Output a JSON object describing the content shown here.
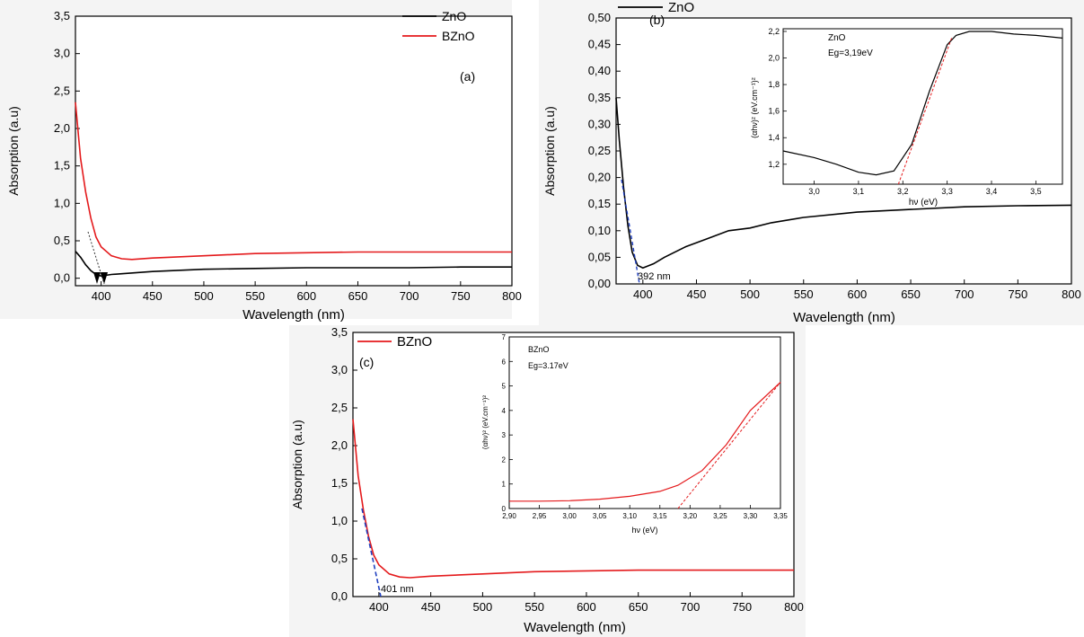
{
  "colors": {
    "zno": "#000000",
    "bzno": "#e41a1c",
    "fit": "#1f3fbf",
    "panel_bg": "#ffffff"
  },
  "chart_data": [
    {
      "id": "a",
      "type": "line",
      "panel_label": "(a)",
      "xlabel": "Wavelength (nm)",
      "ylabel": "Absorption (a.u)",
      "xlim": [
        375,
        800
      ],
      "ylim": [
        -0.1,
        3.5
      ],
      "xticks": [
        400,
        450,
        500,
        550,
        600,
        650,
        700,
        750,
        800
      ],
      "yticks": [
        0.0,
        0.5,
        1.0,
        1.5,
        2.0,
        2.5,
        3.0,
        3.5
      ],
      "ytick_labels": [
        "0,0",
        "0,5",
        "1,0",
        "1,5",
        "2,0",
        "2,5",
        "3,0",
        "3,5"
      ],
      "legend": [
        "ZnO",
        "BZnO"
      ],
      "series": [
        {
          "name": "ZnO",
          "color": "#000000",
          "x": [
            375,
            380,
            385,
            390,
            395,
            400,
            410,
            420,
            450,
            500,
            550,
            600,
            650,
            700,
            750,
            800
          ],
          "y": [
            0.36,
            0.28,
            0.18,
            0.1,
            0.05,
            0.03,
            0.05,
            0.06,
            0.09,
            0.12,
            0.13,
            0.14,
            0.14,
            0.14,
            0.15,
            0.15
          ]
        },
        {
          "name": "BZnO",
          "color": "#e41a1c",
          "x": [
            375,
            378,
            380,
            385,
            390,
            395,
            400,
            410,
            420,
            430,
            450,
            500,
            550,
            600,
            650,
            700,
            750,
            800
          ],
          "y": [
            2.35,
            1.9,
            1.6,
            1.15,
            0.8,
            0.55,
            0.42,
            0.3,
            0.26,
            0.25,
            0.27,
            0.3,
            0.33,
            0.34,
            0.35,
            0.35,
            0.35,
            0.35
          ]
        }
      ]
    },
    {
      "id": "b",
      "type": "line",
      "panel_label": "(b)",
      "xlabel": "Wavelength (nm)",
      "ylabel": "Absorption (a.u)",
      "xlim": [
        375,
        800
      ],
      "ylim": [
        0.0,
        0.5
      ],
      "xticks": [
        400,
        450,
        500,
        550,
        600,
        650,
        700,
        750,
        800
      ],
      "yticks": [
        0.0,
        0.05,
        0.1,
        0.15,
        0.2,
        0.25,
        0.3,
        0.35,
        0.4,
        0.45,
        0.5
      ],
      "ytick_labels": [
        "0,00",
        "0,05",
        "0,10",
        "0,15",
        "0,20",
        "0,25",
        "0,30",
        "0,35",
        "0,40",
        "0,45",
        "0,50"
      ],
      "legend": [
        "ZnO"
      ],
      "annotation": "392 nm",
      "series": [
        {
          "name": "ZnO",
          "color": "#000000",
          "x": [
            375,
            378,
            382,
            386,
            390,
            395,
            400,
            410,
            420,
            440,
            460,
            480,
            500,
            520,
            550,
            600,
            650,
            700,
            750,
            800
          ],
          "y": [
            0.35,
            0.27,
            0.18,
            0.11,
            0.06,
            0.035,
            0.03,
            0.038,
            0.05,
            0.07,
            0.085,
            0.1,
            0.105,
            0.115,
            0.125,
            0.135,
            0.14,
            0.145,
            0.147,
            0.148
          ]
        }
      ],
      "inset": {
        "label": "ZnO",
        "eg": "Eg=3,19eV",
        "xlabel": "hν (eV)",
        "ylabel": "(αhν)² (eV.cm⁻¹)²",
        "xlim": [
          2.93,
          3.56
        ],
        "ylim": [
          1.05,
          2.22
        ],
        "xticks": [
          3.0,
          3.1,
          3.2,
          3.3,
          3.4,
          3.5
        ],
        "xtick_labels": [
          "3,0",
          "3,1",
          "3,2",
          "3,3",
          "3,4",
          "3,5"
        ],
        "yticks": [
          1.2,
          1.4,
          1.6,
          1.8,
          2.0,
          2.2
        ],
        "ytick_labels": [
          "1,2",
          "1,4",
          "1,6",
          "1,8",
          "2,0",
          "2,2"
        ],
        "x": [
          2.93,
          3.0,
          3.05,
          3.1,
          3.14,
          3.18,
          3.22,
          3.26,
          3.3,
          3.32,
          3.35,
          3.4,
          3.45,
          3.5,
          3.56
        ],
        "y": [
          1.3,
          1.25,
          1.2,
          1.14,
          1.12,
          1.15,
          1.35,
          1.75,
          2.1,
          2.17,
          2.2,
          2.2,
          2.18,
          2.17,
          2.15
        ],
        "fit_x": [
          3.19,
          3.31
        ],
        "fit_y": [
          1.05,
          2.15
        ]
      }
    },
    {
      "id": "c",
      "type": "line",
      "panel_label": "(c)",
      "xlabel": "Wavelength (nm)",
      "ylabel": "Absorption (a.u)",
      "xlim": [
        375,
        800
      ],
      "ylim": [
        0.0,
        3.5
      ],
      "xticks": [
        400,
        450,
        500,
        550,
        600,
        650,
        700,
        750,
        800
      ],
      "yticks": [
        0.0,
        0.5,
        1.0,
        1.5,
        2.0,
        2.5,
        3.0,
        3.5
      ],
      "ytick_labels": [
        "0,0",
        "0,5",
        "1,0",
        "1,5",
        "2,0",
        "2,5",
        "3,0",
        "3,5"
      ],
      "legend": [
        "BZnO"
      ],
      "annotation": "401 nm",
      "series": [
        {
          "name": "BZnO",
          "color": "#e41a1c",
          "x": [
            375,
            378,
            380,
            385,
            390,
            395,
            400,
            410,
            420,
            430,
            450,
            500,
            550,
            600,
            650,
            700,
            750,
            800
          ],
          "y": [
            2.35,
            1.9,
            1.6,
            1.15,
            0.8,
            0.55,
            0.42,
            0.3,
            0.26,
            0.25,
            0.27,
            0.3,
            0.33,
            0.34,
            0.35,
            0.35,
            0.35,
            0.35
          ]
        }
      ],
      "inset": {
        "label": "BZnO",
        "eg": "Eg=3.17eV",
        "xlabel": "hν (eV)",
        "ylabel": "(αhν)² (eV.cm⁻¹)²",
        "xlim": [
          2.9,
          3.35
        ],
        "ylim": [
          0,
          7
        ],
        "xticks": [
          2.9,
          2.95,
          3.0,
          3.05,
          3.1,
          3.15,
          3.2,
          3.25,
          3.3,
          3.35
        ],
        "xtick_labels": [
          "2,90",
          "2,95",
          "3,00",
          "3,05",
          "3,10",
          "3,15",
          "3,20",
          "3,25",
          "3,30",
          "3,35"
        ],
        "yticks": [
          0,
          1,
          2,
          3,
          4,
          5,
          6,
          7
        ],
        "ytick_labels": [
          "0",
          "1",
          "2",
          "3",
          "4",
          "5",
          "6",
          "7"
        ],
        "x": [
          2.9,
          2.95,
          3.0,
          3.05,
          3.1,
          3.15,
          3.18,
          3.22,
          3.26,
          3.3,
          3.35
        ],
        "y": [
          0.3,
          0.3,
          0.32,
          0.38,
          0.5,
          0.7,
          0.95,
          1.55,
          2.6,
          4.0,
          5.15
        ],
        "fit_x": [
          3.18,
          3.35
        ],
        "fit_y": [
          0.0,
          5.15
        ]
      }
    }
  ]
}
